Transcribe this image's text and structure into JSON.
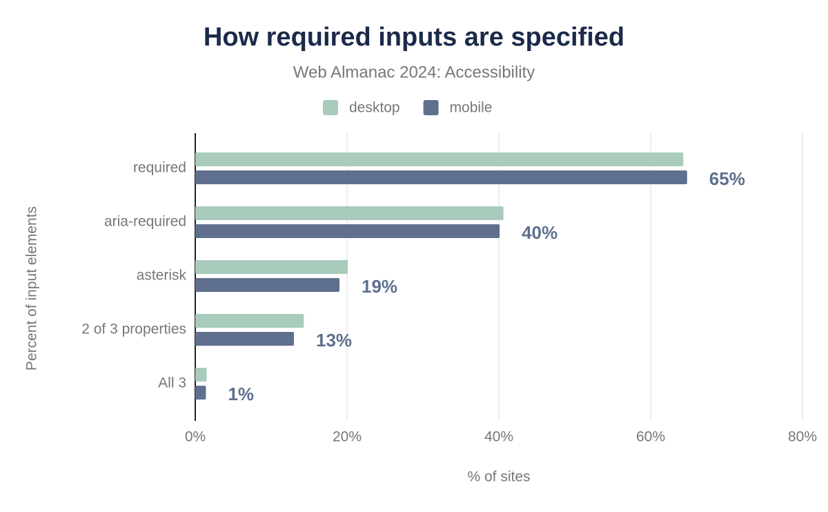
{
  "chart_data": {
    "type": "bar",
    "orientation": "horizontal",
    "title": "How required inputs are specified",
    "subtitle": "Web Almanac 2024: Accessibility",
    "x_label": "% of sites",
    "y_label": "Percent of input elements",
    "categories": [
      "required",
      "aria-required",
      "asterisk",
      "2 of 3 properties",
      "All 3"
    ],
    "series": [
      {
        "name": "desktop",
        "color": "#a8cbbb",
        "values": [
          64.3,
          40.6,
          20.1,
          14.3,
          1.5
        ]
      },
      {
        "name": "mobile",
        "color": "#5f6f8e",
        "values": [
          64.8,
          40.1,
          19.0,
          13.0,
          1.4
        ],
        "value_labels": [
          "65%",
          "40%",
          "19%",
          "13%",
          "1%"
        ]
      }
    ],
    "xlim": [
      0,
      80
    ],
    "xticks": [
      {
        "value": 0,
        "label": "0%"
      },
      {
        "value": 20,
        "label": "20%"
      },
      {
        "value": 40,
        "label": "40%"
      },
      {
        "value": 60,
        "label": "60%"
      },
      {
        "value": 80,
        "label": "80%"
      }
    ],
    "grid": true,
    "legend": "top"
  }
}
